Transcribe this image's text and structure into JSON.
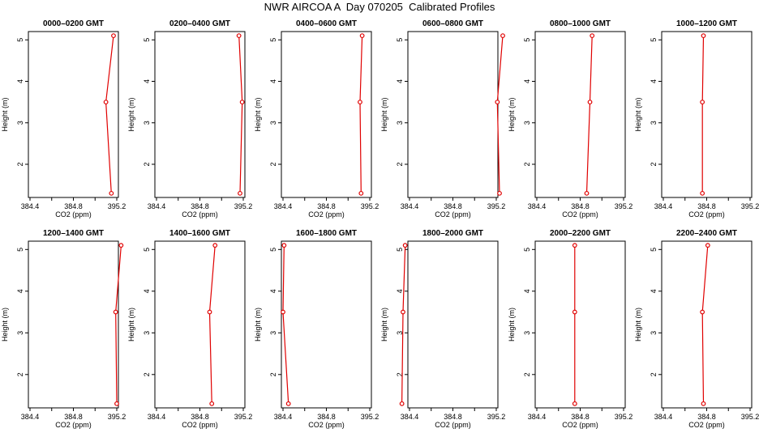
{
  "title": "NWR AIRCOA A  Day 070205  Calibrated Profiles",
  "chart_data": [
    {
      "type": "line",
      "title": "0000–0200 GMT",
      "xlabel": "CO2 (ppm)",
      "ylabel": "Height (m)",
      "xlim": [
        384.3,
        395.3
      ],
      "ylim": [
        1.2,
        5.2
      ],
      "xticks": [
        "384.4",
        "384.6",
        "384.8",
        "395.0",
        "395.2"
      ],
      "yticks": [
        "2",
        "3",
        "4",
        "5"
      ],
      "x": [
        395.15,
        395.1,
        395.17
      ],
      "y": [
        1.3,
        3.5,
        5.1
      ],
      "color": "#e00000"
    },
    {
      "type": "line",
      "title": "0200–0400 GMT",
      "xlabel": "CO2 (ppm)",
      "ylabel": "Height (m)",
      "xlim": [
        384.3,
        395.3
      ],
      "ylim": [
        1.2,
        5.2
      ],
      "xticks": [
        "384.4",
        "384.6",
        "384.8",
        "395.0",
        "395.2"
      ],
      "yticks": [
        "2",
        "3",
        "4",
        "5"
      ],
      "x": [
        395.17,
        395.19,
        395.16
      ],
      "y": [
        1.3,
        3.5,
        5.1
      ],
      "color": "#e00000"
    },
    {
      "type": "line",
      "title": "0400–0600 GMT",
      "xlabel": "CO2 (ppm)",
      "ylabel": "Height (m)",
      "xlim": [
        384.3,
        395.3
      ],
      "ylim": [
        1.2,
        5.2
      ],
      "xticks": [
        "384.4",
        "384.6",
        "384.8",
        "395.0",
        "395.2"
      ],
      "yticks": [
        "2",
        "3",
        "4",
        "5"
      ],
      "x": [
        395.12,
        395.11,
        395.13
      ],
      "y": [
        1.3,
        3.5,
        5.1
      ],
      "color": "#e00000"
    },
    {
      "type": "line",
      "title": "0600–0800 GMT",
      "xlabel": "CO2 (ppm)",
      "ylabel": "Height (m)",
      "xlim": [
        384.3,
        395.3
      ],
      "ylim": [
        1.2,
        5.2
      ],
      "xticks": [
        "384.4",
        "384.6",
        "384.8",
        "395.0",
        "395.2"
      ],
      "yticks": [
        "2",
        "3",
        "4",
        "5"
      ],
      "x": [
        395.23,
        395.21,
        395.26
      ],
      "y": [
        1.3,
        3.5,
        5.1
      ],
      "color": "#e00000"
    },
    {
      "type": "line",
      "title": "0800–1000 GMT",
      "xlabel": "CO2 (ppm)",
      "ylabel": "Height (m)",
      "xlim": [
        384.3,
        395.3
      ],
      "ylim": [
        1.2,
        5.2
      ],
      "xticks": [
        "384.4",
        "384.6",
        "384.8",
        "395.0",
        "395.2"
      ],
      "yticks": [
        "2",
        "3",
        "4",
        "5"
      ],
      "x": [
        384.86,
        384.89,
        384.91
      ],
      "y": [
        1.3,
        3.5,
        5.1
      ],
      "color": "#e00000"
    },
    {
      "type": "line",
      "title": "1000–1200 GMT",
      "xlabel": "CO2 (ppm)",
      "ylabel": "Height (m)",
      "xlim": [
        384.3,
        395.3
      ],
      "ylim": [
        1.2,
        5.2
      ],
      "xticks": [
        "384.4",
        "384.6",
        "384.8",
        "395.0",
        "395.2"
      ],
      "yticks": [
        "2",
        "3",
        "4",
        "5"
      ],
      "x": [
        384.76,
        384.76,
        384.77
      ],
      "y": [
        1.3,
        3.5,
        5.1
      ],
      "color": "#e00000"
    },
    {
      "type": "line",
      "title": "1200–1400 GMT",
      "xlabel": "CO2 (ppm)",
      "ylabel": "Height (m)",
      "xlim": [
        384.3,
        395.3
      ],
      "ylim": [
        1.2,
        5.2
      ],
      "xticks": [
        "384.4",
        "384.6",
        "384.8",
        "395.0",
        "395.2"
      ],
      "yticks": [
        "2",
        "3",
        "4",
        "5"
      ],
      "x": [
        395.2,
        395.19,
        395.24
      ],
      "y": [
        1.3,
        3.5,
        5.1
      ],
      "color": "#e00000"
    },
    {
      "type": "line",
      "title": "1400–1600 GMT",
      "xlabel": "CO2 (ppm)",
      "ylabel": "Height (m)",
      "xlim": [
        384.3,
        395.3
      ],
      "ylim": [
        1.2,
        5.2
      ],
      "xticks": [
        "384.4",
        "384.6",
        "384.8",
        "395.0",
        "395.2"
      ],
      "yticks": [
        "2",
        "3",
        "4",
        "5"
      ],
      "x": [
        384.91,
        384.89,
        384.94
      ],
      "y": [
        1.3,
        3.5,
        5.1
      ],
      "color": "#e00000"
    },
    {
      "type": "line",
      "title": "1600–1800 GMT",
      "xlabel": "CO2 (ppm)",
      "ylabel": "Height (m)",
      "xlim": [
        384.3,
        395.3
      ],
      "ylim": [
        1.2,
        5.2
      ],
      "xticks": [
        "384.4",
        "384.6",
        "384.8",
        "395.0",
        "395.2"
      ],
      "yticks": [
        "2",
        "3",
        "4",
        "5"
      ],
      "x": [
        384.45,
        384.4,
        384.41
      ],
      "y": [
        1.3,
        3.5,
        5.1
      ],
      "color": "#e00000"
    },
    {
      "type": "line",
      "title": "1800–2000 GMT",
      "xlabel": "CO2 (ppm)",
      "ylabel": "Height (m)",
      "xlim": [
        384.3,
        395.3
      ],
      "ylim": [
        1.2,
        5.2
      ],
      "xticks": [
        "384.4",
        "384.6",
        "384.8",
        "395.0",
        "395.2"
      ],
      "yticks": [
        "2",
        "3",
        "4",
        "5"
      ],
      "x": [
        384.33,
        384.34,
        384.36
      ],
      "y": [
        1.3,
        3.5,
        5.1
      ],
      "color": "#e00000"
    },
    {
      "type": "line",
      "title": "2000–2200 GMT",
      "xlabel": "CO2 (ppm)",
      "ylabel": "Height (m)",
      "xlim": [
        384.3,
        395.3
      ],
      "ylim": [
        1.2,
        5.2
      ],
      "xticks": [
        "384.4",
        "384.6",
        "384.8",
        "395.0",
        "395.2"
      ],
      "yticks": [
        "2",
        "3",
        "4",
        "5"
      ],
      "x": [
        384.75,
        384.75,
        384.75
      ],
      "y": [
        1.3,
        3.5,
        5.1
      ],
      "color": "#e00000"
    },
    {
      "type": "line",
      "title": "2200–2400 GMT",
      "xlabel": "CO2 (ppm)",
      "ylabel": "Height (m)",
      "xlim": [
        384.3,
        395.3
      ],
      "ylim": [
        1.2,
        5.2
      ],
      "xticks": [
        "384.4",
        "384.6",
        "384.8",
        "395.0",
        "395.2"
      ],
      "yticks": [
        "2",
        "3",
        "4",
        "5"
      ],
      "x": [
        384.77,
        384.76,
        384.81
      ],
      "y": [
        1.3,
        3.5,
        5.1
      ],
      "color": "#e00000"
    }
  ]
}
